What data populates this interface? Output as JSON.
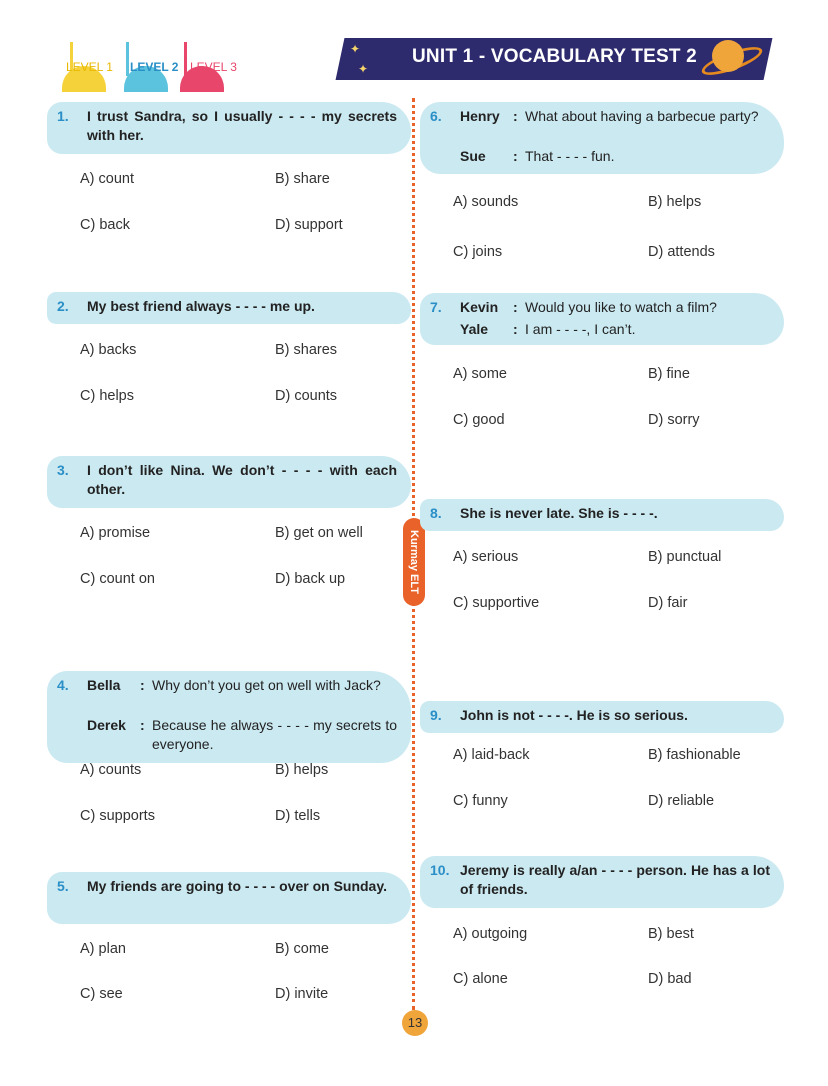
{
  "header": {
    "levels": [
      "LEVEL 1",
      "LEVEL 2",
      "LEVEL 3"
    ],
    "active_level": "LEVEL 2",
    "title": "UNIT 1 - VOCABULARY TEST 2"
  },
  "colors": {
    "accent": "#2a8fc7",
    "highlight": "#cbe9f1",
    "divider": "#e8622a",
    "banner": "#2e2a6e"
  },
  "brand": "Kurmay ELT",
  "page_number": "13",
  "questions": [
    {
      "num": "1.",
      "text": "I trust Sandra, so I usually - - - - my secrets with her.",
      "options": [
        "A) count",
        "B) share",
        "C) back",
        "D) support"
      ]
    },
    {
      "num": "2.",
      "text": "My best friend always - - - - me up.",
      "options": [
        "A) backs",
        "B) shares",
        "C) helps",
        "D) counts"
      ]
    },
    {
      "num": "3.",
      "text": "I don’t like Nina. We don’t - - - - with each other.",
      "options": [
        "A) promise",
        "B) get on well",
        "C) count on",
        "D) back up"
      ]
    },
    {
      "num": "4.",
      "dialogue": [
        {
          "speaker": "Bella",
          "line": "Why don’t you get on well with Jack?"
        },
        {
          "speaker": "Derek",
          "line": "Because he always - - - - my secrets to everyone."
        }
      ],
      "options": [
        "A) counts",
        "B) helps",
        "C) supports",
        "D) tells"
      ]
    },
    {
      "num": "5.",
      "text": "My friends are going to - - - - over on Sunday.",
      "options": [
        "A) plan",
        "B) come",
        "C) see",
        "D) invite"
      ]
    },
    {
      "num": "6.",
      "dialogue": [
        {
          "speaker": "Henry",
          "line": "What about having a barbecue party?"
        },
        {
          "speaker": "Sue",
          "line": "That - - - - fun."
        }
      ],
      "options": [
        "A) sounds",
        "B) helps",
        "C) joins",
        "D) attends"
      ]
    },
    {
      "num": "7.",
      "dialogue": [
        {
          "speaker": "Kevin",
          "line": "Would you like to watch a film?"
        },
        {
          "speaker": "Yale",
          "line": "I am - - - -, I can’t."
        }
      ],
      "options": [
        "A) some",
        "B) fine",
        "C) good",
        "D) sorry"
      ]
    },
    {
      "num": "8.",
      "text": "She is never late. She is - - - -.",
      "options": [
        "A) serious",
        "B) punctual",
        "C) supportive",
        "D) fair"
      ]
    },
    {
      "num": "9.",
      "text": "John is not - - - -. He is so serious.",
      "options": [
        "A) laid-back",
        "B) fashionable",
        "C) funny",
        "D) reliable"
      ]
    },
    {
      "num": "10.",
      "text": "Jeremy is really a/an - - - - person. He has a lot of friends.",
      "options": [
        "A) outgoing",
        "B) best",
        "C) alone",
        "D) bad"
      ]
    }
  ]
}
